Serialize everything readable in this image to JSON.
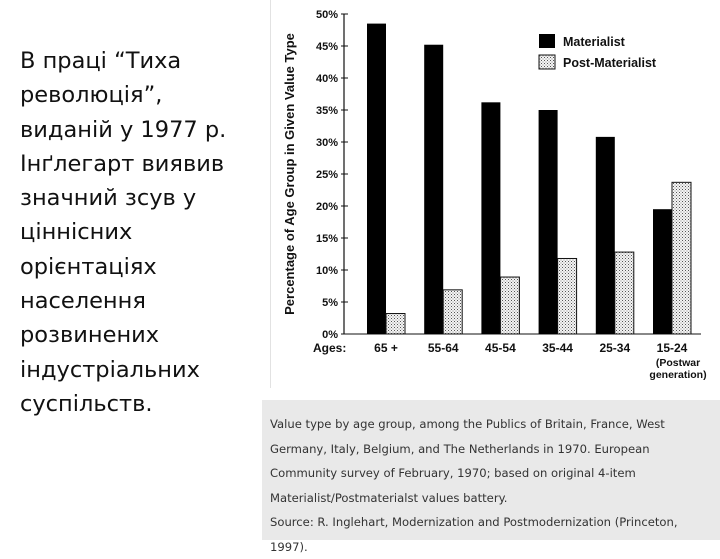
{
  "slide_text": "В праці “Тиха революція”, виданій у 1977 р. Інґлегарт виявив значний зсув у ціннісних орієнтаціях населення розвинених індустріальних суспільств.",
  "caption_lines": [
    "Value type by age group, among the Publics of Britain, France, West",
    "Germany, Italy, Belgium, and The Netherlands in 1970. European",
    "Community survey of February, 1970; based on original 4-item",
    "Materialist/Postmaterialst values battery.",
    "Source: R. Inglehart, Modernization and Postmodernization (Princeton,",
    "1997)."
  ],
  "chart_data": {
    "type": "bar",
    "ylabel": "Percentage of Age Group in Given Value Type",
    "xlabel": "Ages:",
    "categories": [
      "65 +",
      "55-64",
      "45-54",
      "35-44",
      "25-34",
      "15-24"
    ],
    "category_sublabels": {
      "15-24": [
        "(Postwar",
        "generation)"
      ]
    },
    "ylim": [
      0,
      50
    ],
    "yticks": [
      0,
      5,
      10,
      15,
      20,
      25,
      30,
      35,
      40,
      45,
      50
    ],
    "ytick_labels": [
      "0%",
      "5%",
      "10%",
      "15%",
      "20%",
      "25%",
      "30%",
      "35%",
      "40%",
      "45%",
      "50%"
    ],
    "legend_position": "top-right",
    "grid": false,
    "series": [
      {
        "name": "Materialist",
        "color": "#000000",
        "fill": "solid",
        "values": [
          48.5,
          45.2,
          36.2,
          35.0,
          30.8,
          19.5
        ]
      },
      {
        "name": "Post-Materialist",
        "color": "#dddddd",
        "fill": "stippled",
        "values": [
          3.2,
          6.9,
          8.9,
          11.8,
          12.8,
          23.7
        ]
      }
    ]
  }
}
